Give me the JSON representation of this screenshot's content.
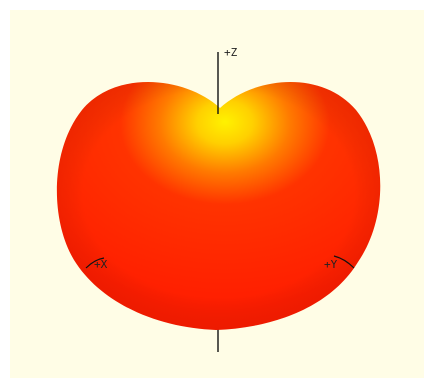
{
  "plot": {
    "background_color": "#fffde6",
    "surface_base_color": "#ff2a00",
    "surface_highlight_color": "#ffe600",
    "axis_color": "#111111",
    "axes": {
      "z_label": "+Z",
      "x_label": "+X",
      "y_label": "+Y"
    }
  }
}
